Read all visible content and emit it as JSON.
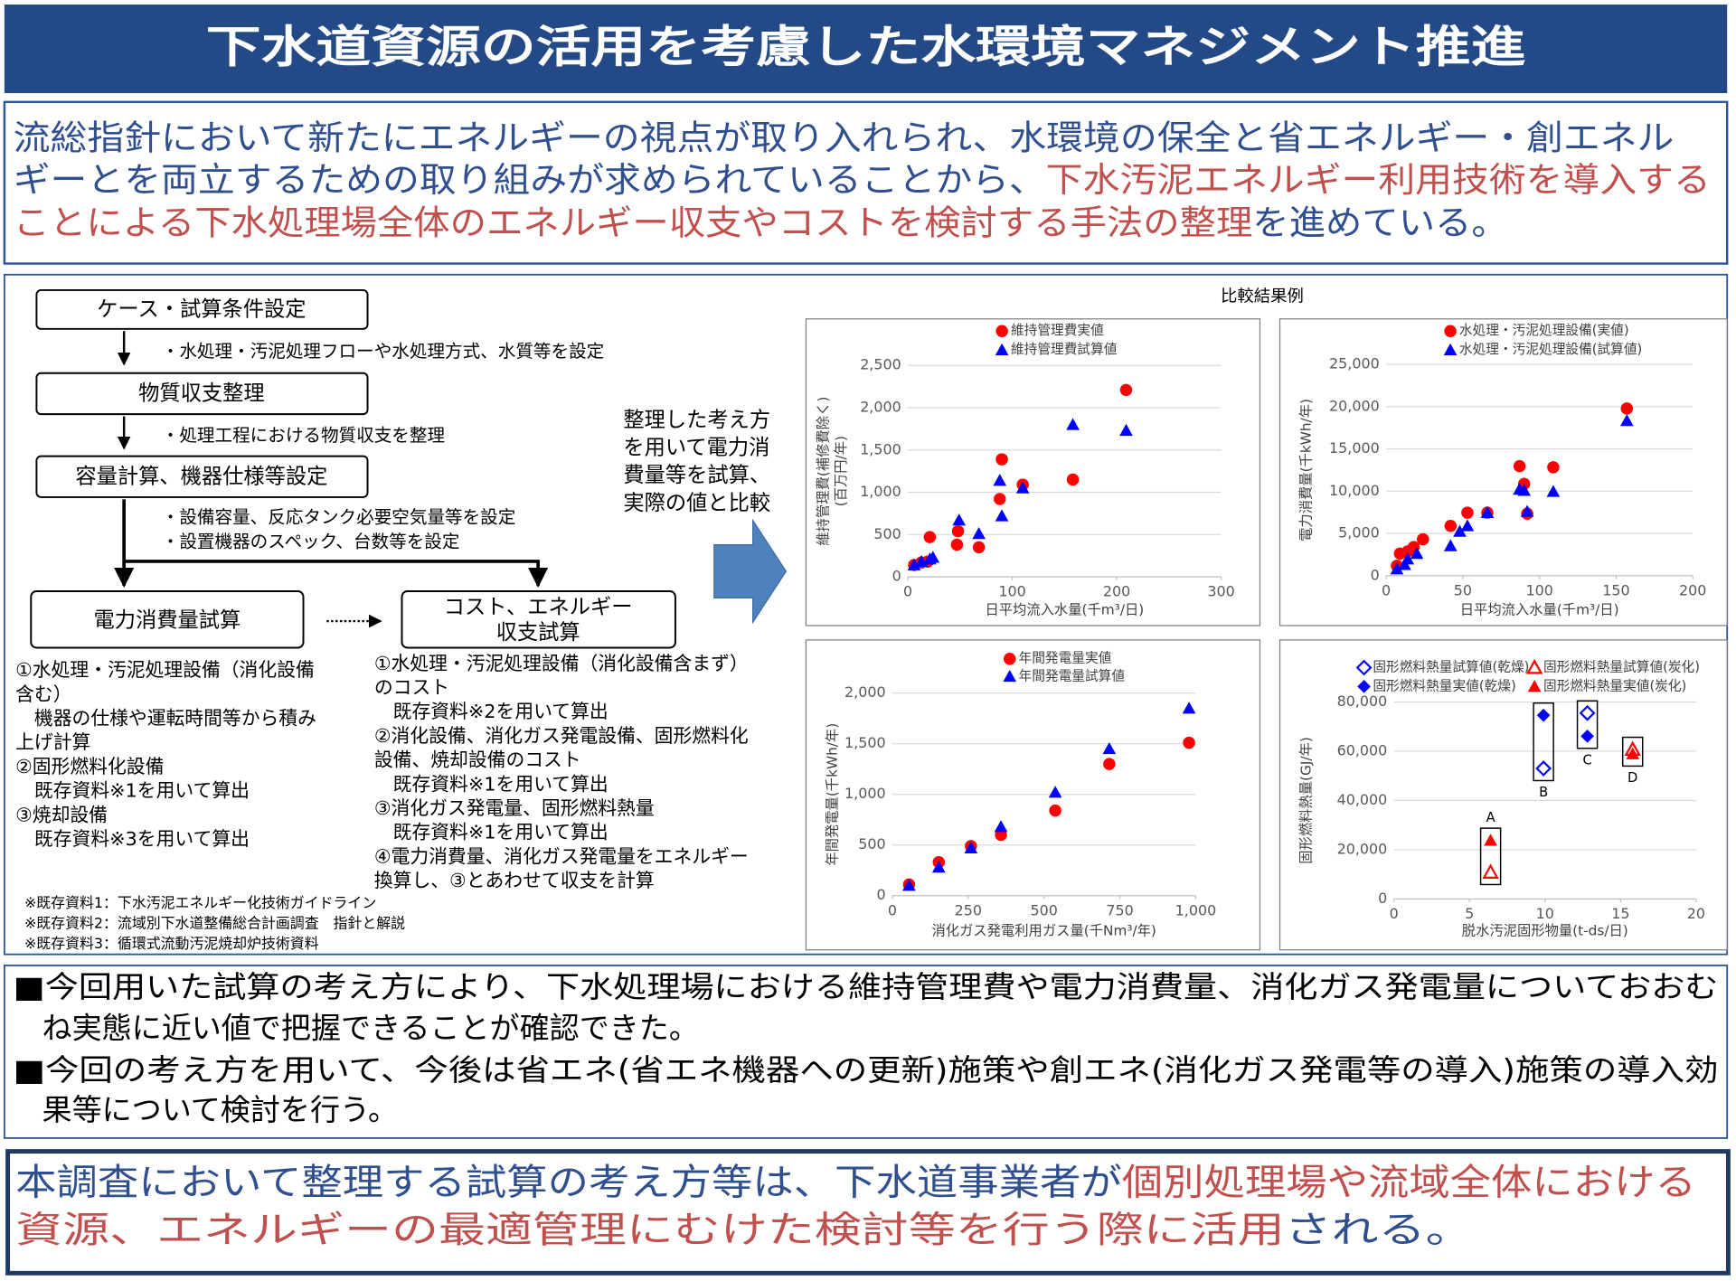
{
  "header": {
    "title": "下水道資源の活用を考慮した水環境マネジメント推進"
  },
  "intro": {
    "lines": [
      [
        {
          "text": "流総指針において新たにエネルギーの視点が取り入れられ、水環境の保全と省エネルギー・創エネル",
          "color": "#2f4f8f"
        }
      ],
      [
        {
          "text": "ギーとを両立するための取り組みが求められていることから、",
          "color": "#2f4f8f"
        },
        {
          "text": "下水汚泥エネルギー利用技術を導入する",
          "color": "#c0504d"
        }
      ],
      [
        {
          "text": "ことによる下水処理場全体のエネルギー収支やコストを検討する手法の整理",
          "color": "#c0504d"
        },
        {
          "text": "を進めている。",
          "color": "#2f4f8f"
        }
      ]
    ]
  },
  "flow": {
    "steps": [
      "ケース・試算条件設定",
      "物質収支整理",
      "容量計算、機器仕様等設定"
    ],
    "step_notes": [
      [
        "・水処理・汚泥処理フローや水処理方式、水質等を設定"
      ],
      [
        "・処理工程における物質収支を整理"
      ],
      [
        "・設備容量、反応タンク必要空気量等を設定",
        "・設置機器のスペック、台数等を設定"
      ]
    ],
    "outputs": [
      {
        "title": [
          "電力消費量試算"
        ],
        "details": [
          "①水処理・汚泥処理設備（消化設備",
          "含む）",
          "　機器の仕様や運転時間等から積み",
          "上げ計算",
          "②固形燃料化設備",
          "　既存資料※1を用いて算出",
          "③焼却設備",
          "　既存資料※3を用いて算出"
        ]
      },
      {
        "title": [
          "コスト、エネルギー",
          "収支試算"
        ],
        "details": [
          "①水処理・汚泥処理設備（消化設備含まず）",
          "のコスト",
          "　既存資料※2を用いて算出",
          "②消化設備、消化ガス発電設備、固形燃料化",
          "設備、焼却設備のコスト",
          "　既存資料※1を用いて算出",
          "③消化ガス発電量、固形燃料熱量",
          "　既存資料※1を用いて算出",
          "④電力消費量、消化ガス発電量をエネルギー",
          "換算し、③とあわせて収支を計算"
        ]
      }
    ],
    "references": [
      "※既存資料1：下水汚泥エネルギー化技術ガイドライン",
      "※既存資料2：流域別下水道整備総合計画調査　指針と解説",
      "※既存資料3：循環式流動汚泥焼却炉技術資料"
    ],
    "middle_note": [
      "整理した考え方",
      "を用いて電力消",
      "費量等を試算、",
      "実際の値と比較"
    ]
  },
  "comparison": {
    "title": "比較結果例",
    "charts": [
      {
        "type": "scatter",
        "xlabel": "日平均流入水量(千m³/日)",
        "ylabel": [
          "維持管理費(補修費除く)",
          "(百万円/年)"
        ],
        "xlim": [
          0,
          300
        ],
        "xticks": [
          0,
          100,
          200,
          300
        ],
        "ylim": [
          0,
          2500
        ],
        "yticks": [
          0,
          500,
          {
            "value": 1000,
            "label": "1,000"
          },
          {
            "value": 1500,
            "label": "1,500"
          },
          {
            "value": 2000,
            "label": "2,000"
          },
          {
            "value": 2500,
            "label": "2,500"
          }
        ],
        "grid": true,
        "series": [
          {
            "name": "維持管理費実値",
            "color": "#ff0000",
            "marker": "circle",
            "x": [
              6,
              13,
              21,
              19,
              47,
              48,
              68,
              88,
              90,
              110,
              158,
              209
            ],
            "y": [
              140,
              170,
              470,
              180,
              380,
              540,
              350,
              920,
              1390,
              1090,
              1150,
              2210
            ]
          },
          {
            "name": "維持管理費試算値",
            "color": "#0000ff",
            "marker": "triangle",
            "x": [
              6,
              13,
              21,
              24,
              49,
              68,
              88,
              90,
              110,
              158,
              209
            ],
            "y": [
              140,
              180,
              210,
              230,
              670,
              510,
              1140,
              720,
              1050,
              1800,
              1730
            ]
          }
        ]
      },
      {
        "type": "scatter",
        "xlabel": "日平均流入水量(千m³/日)",
        "ylabel": [
          "電力消費量(千kWh/年)"
        ],
        "xlim": [
          0,
          200
        ],
        "xticks": [
          0,
          50,
          100,
          150,
          200
        ],
        "ylim": [
          0,
          25000
        ],
        "yticks": [
          0,
          {
            "value": 5000,
            "label": "5,000"
          },
          {
            "value": 10000,
            "label": "10,000"
          },
          {
            "value": 15000,
            "label": "15,000"
          },
          {
            "value": 20000,
            "label": "20,000"
          },
          {
            "value": 25000,
            "label": "25,000"
          }
        ],
        "grid": true,
        "series": [
          {
            "name": "水処理・汚泥処理設備(実値)",
            "color": "#ff0000",
            "marker": "circle",
            "x": [
              7,
              9,
              14,
              18,
              24,
              42,
              53,
              66,
              87,
              90,
              92,
              109,
              157
            ],
            "y": [
              1180,
              2620,
              2880,
              3400,
              4320,
              5890,
              7460,
              7460,
              12960,
              10860,
              7330,
              12830,
              19770
            ]
          },
          {
            "name": "水処理・汚泥処理設備(試算値)",
            "color": "#0000ff",
            "marker": "triangle",
            "x": [
              7,
              12,
              14,
              20,
              42,
              48,
              53,
              66,
              87,
              90,
              92,
              109,
              157
            ],
            "y": [
              790,
              1310,
              1960,
              2620,
              3530,
              5240,
              5890,
              7460,
              10210,
              10080,
              7590,
              9950,
              18330
            ]
          }
        ]
      },
      {
        "type": "scatter",
        "xlabel": "消化ガス発電利用ガス量(千Nm³/年)",
        "ylabel": [
          "年間発電量(千kWh/年)"
        ],
        "xlim": [
          0,
          1000
        ],
        "xticks": [
          0,
          250,
          500,
          750,
          {
            "value": 1000,
            "label": "1,000"
          }
        ],
        "ylim": [
          0,
          2000
        ],
        "yticks": [
          0,
          500,
          {
            "value": 1000,
            "label": "1,000"
          },
          {
            "value": 1500,
            "label": "1,500"
          },
          {
            "value": 2000,
            "label": "2,000"
          }
        ],
        "grid": true,
        "series": [
          {
            "name": "年間発電量実値",
            "color": "#ff0000",
            "marker": "circle",
            "x": [
              55,
              153,
              259,
              358,
              537,
              715,
              978
            ],
            "y": [
              110,
              330,
              490,
              600,
              840,
              1300,
              1510
            ]
          },
          {
            "name": "年間発電量試算値",
            "color": "#0000ff",
            "marker": "triangle",
            "x": [
              55,
              153,
              259,
              358,
              537,
              715,
              978
            ],
            "y": [
              100,
              280,
              470,
              680,
              1020,
              1450,
              1850
            ]
          }
        ]
      },
      {
        "type": "scatter",
        "xlabel": "脱水汚泥固形物量(t-ds/日)",
        "ylabel": [
          "固形燃料熱量(GJ/年)"
        ],
        "xlim": [
          0,
          20
        ],
        "xticks": [
          0,
          5,
          10,
          15,
          20
        ],
        "ylim": [
          0,
          80000
        ],
        "yticks": [
          0,
          {
            "value": 20000,
            "label": "20,000"
          },
          {
            "value": 40000,
            "label": "40,000"
          },
          {
            "value": 60000,
            "label": "60,000"
          },
          {
            "value": 80000,
            "label": "80,000"
          }
        ],
        "grid": true,
        "groups": [
          "A",
          "B",
          "C",
          "D"
        ],
        "x": [
          6.4,
          9.9,
          12.8,
          15.8
        ],
        "series": [
          {
            "name": "固形燃料熱量試算値(乾燥)",
            "color": "#0000ff",
            "marker": "diamond-open",
            "values": [
              null,
              53000,
              75500,
              null
            ]
          },
          {
            "name": "固形燃料熱量試算値(炭化)",
            "color": "#ff0000",
            "marker": "triangle-open",
            "values": [
              10800,
              null,
              null,
              60700
            ]
          },
          {
            "name": "固形燃料熱量実値(乾燥)",
            "color": "#0000ff",
            "marker": "diamond",
            "values": [
              null,
              74600,
              66100,
              null
            ]
          },
          {
            "name": "固形燃料熱量実値(炭化)",
            "color": "#ff0000",
            "marker": "triangle",
            "values": [
              23800,
              null,
              null,
              58900
            ]
          }
        ]
      }
    ]
  },
  "conclusions": {
    "items": [
      [
        "■今回用いた試算の考え方により、下水処理場における維持管理費や電力消費量、消化ガス発電量についておおむ",
        "ね実態に近い値で把握できることが確認できた。"
      ],
      [
        "■今回の考え方を用いて、今後は省エネ(省エネ機器への更新)施策や創エネ(消化ガス発電等の導入)施策の導入効",
        "果等について検討を行う。"
      ]
    ]
  },
  "summary": {
    "lines": [
      [
        {
          "text": "本調査において整理する試算の考え方等は、下水道事業者が",
          "color": "#2f4f8f"
        },
        {
          "text": "個別処理場や流域全体における",
          "color": "#c0504d"
        }
      ],
      [
        {
          "text": "資源、エネルギーの最適管理にむけた検討等を行う際に活用",
          "color": "#c0504d"
        },
        {
          "text": "される。",
          "color": "#2f4f8f"
        }
      ]
    ]
  }
}
